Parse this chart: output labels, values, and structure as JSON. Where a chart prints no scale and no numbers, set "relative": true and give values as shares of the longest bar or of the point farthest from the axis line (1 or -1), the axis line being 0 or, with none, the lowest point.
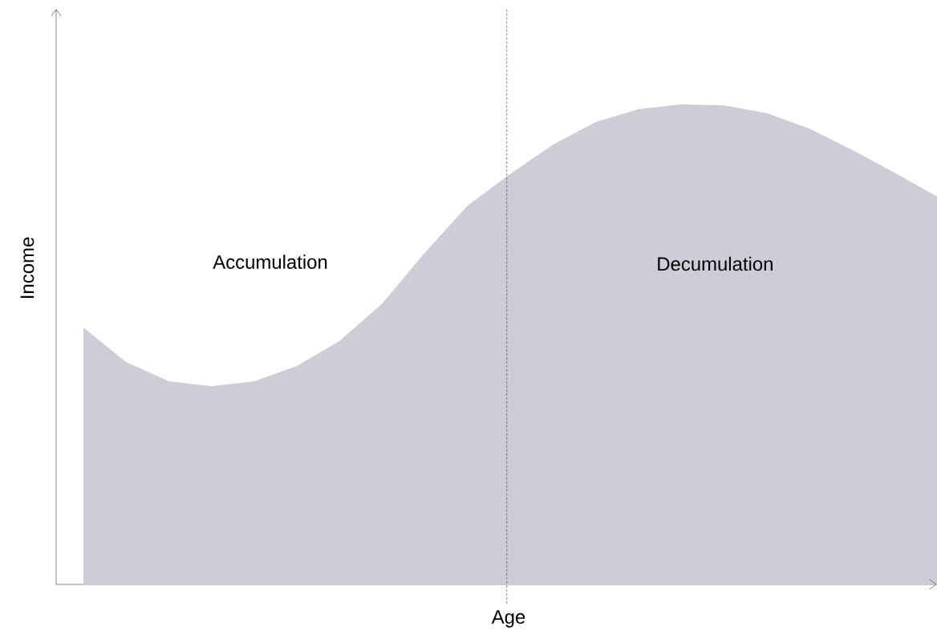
{
  "chart_data": {
    "type": "area",
    "relative": true,
    "xlabel": "Age",
    "ylabel": "Income",
    "categories": [
      null,
      null,
      null,
      null,
      null,
      null,
      null,
      null,
      null,
      null,
      null,
      null,
      null,
      null,
      null,
      null,
      null,
      null,
      null,
      null,
      null
    ],
    "series": [
      {
        "color": "#cdcdd8",
        "values": [
          0.535,
          0.463,
          0.423,
          0.413,
          0.423,
          0.455,
          0.507,
          0.585,
          0.691,
          0.789,
          0.855,
          0.916,
          0.963,
          0.99,
          1.0,
          0.998,
          0.982,
          0.95,
          0.906,
          0.858,
          0.808
        ]
      }
    ],
    "annotations": [
      "Accumulation",
      "Decumulation"
    ]
  }
}
